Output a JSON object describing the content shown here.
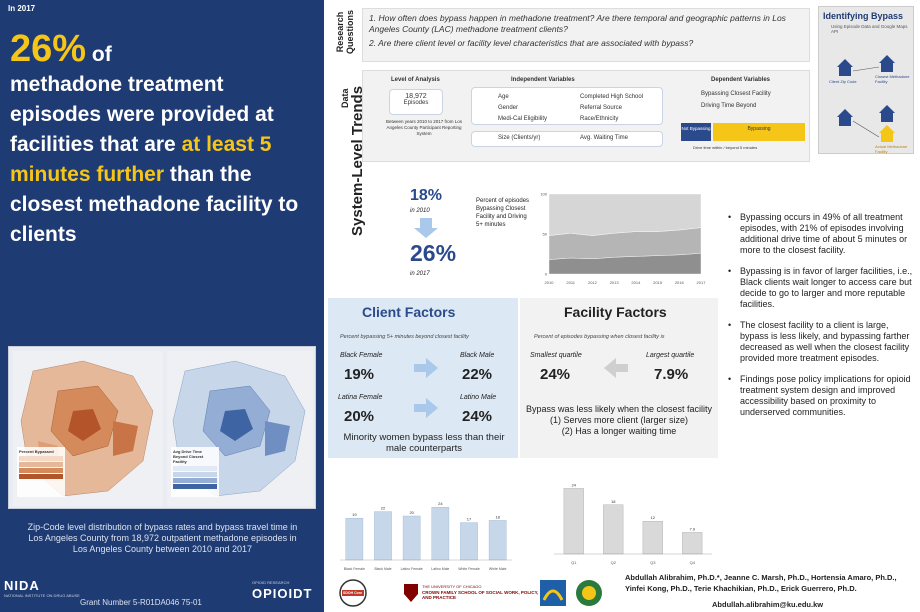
{
  "left": {
    "year_tag": "In 2017",
    "headline_pct": "26%",
    "headline_of": " of",
    "headline_part1": "methadone treatment episodes were provided at facilities that are ",
    "headline_highlight": "at least 5 minutes further",
    "headline_part2": " than the closest methadone facility to clients",
    "map1_legend_title": "Percent Bypassed",
    "map2_legend_title": "Avg Drive Time Beyond Closest Facility",
    "caption": "Zip-Code level distribution of bypass rates and bypass travel time in Los Angeles County from 18,972 outpatient methadone episodes in Los Angeles County between 2010 and 2017",
    "nida": "NIDA",
    "nida_sub": "NATIONAL INSTITUTE ON DRUG ABUSE",
    "grant": "Grant Number 5-R01DA046 75-01",
    "opioid": "OPIOIDT",
    "opioid_sub": "OPIOID RESEARCH"
  },
  "research": {
    "label": "Research Questions",
    "q1": "1. How often does bypass happen in methadone treatment? Are there temporal and geographic patterns in Los Angeles County (LAC) methadone treatment clients?",
    "q2": "2. Are there client level or facility level characteristics that are associated with bypass?"
  },
  "data_section": {
    "label": "Data",
    "level_header": "Level of Analysis",
    "episodes_count": "18,972",
    "episodes_label": "Episodes",
    "episodes_desc": "Between years 2010 to 2017 from Los Angeles County Participant Reporting System",
    "indep_header": "Independent Variables",
    "indep_col1": [
      "Age",
      "Gender",
      "Medi-Cal Eligibility"
    ],
    "indep_col2": [
      "Completed High School",
      "Referral Source",
      "Race/Ethnicity"
    ],
    "size_label": "Size (Clients/yr)",
    "wait_label": "Avg. Waiting Time",
    "dep_header": "Dependent Variables",
    "dep_1": "Bypassing Closest Facility",
    "dep_2": "Driving Time Beyond",
    "not_bypassing": "Not Bypassing",
    "bypassing": "Bypassing",
    "dep_sub": "Drive time within / beyond 5 minutes"
  },
  "identify": {
    "title": "Identifying Bypass",
    "sub": "Using Episode Data and Google Maps API",
    "client_zip": "Client Zip Code",
    "closest": "Closest Methadone Facility",
    "chosen": "Actual Methadone Facility"
  },
  "trends": {
    "title": "System-Level Trends",
    "pct_2010": "18%",
    "label_2010": "in 2010",
    "pct_2017": "26%",
    "label_2017": "in 2017",
    "desc": "Percent of episodes Bypassing Closest Facility and Driving 5+ minutes"
  },
  "chart_data": [
    {
      "type": "area",
      "x": [
        "2010",
        "2011",
        "2012",
        "2013",
        "2014",
        "2015",
        "2016",
        "2017"
      ],
      "series": [
        {
          "values": [
            18,
            20,
            19,
            21,
            22,
            23,
            24,
            26
          ]
        },
        {
          "values": [
            30,
            31,
            29,
            30,
            31,
            30,
            31,
            32
          ]
        },
        {
          "values": [
            52,
            49,
            52,
            49,
            47,
            47,
            45,
            42
          ]
        }
      ],
      "ylim": [
        0,
        100
      ]
    },
    {
      "type": "bar",
      "categories": [
        "Black Female",
        "Black Male",
        "Latino Female",
        "Latino Male",
        "White Female",
        "White Male"
      ],
      "series": [
        {
          "values": [
            19,
            22,
            20,
            24,
            17,
            18
          ]
        }
      ],
      "ylim": [
        0,
        40
      ]
    },
    {
      "type": "bar",
      "categories": [
        "Q1",
        "Q2",
        "Q3",
        "Q4"
      ],
      "values": [
        24,
        18,
        12,
        7.9
      ],
      "ylim": [
        0,
        30
      ]
    }
  ],
  "client": {
    "title": "Client Factors",
    "sub": "Percent bypassing 5+ minutes beyond closest facility",
    "bf_label": "Black Female",
    "bf_val": "19%",
    "bm_label": "Black Male",
    "bm_val": "22%",
    "lf_label": "Latina Female",
    "lf_val": "20%",
    "lm_label": "Latino Male",
    "lm_val": "24%",
    "note": "Minority women bypass less than their male counterparts"
  },
  "facility": {
    "title": "Facility Factors",
    "sub": "Percent of episodes bypassing when closest facility is",
    "small_label": "Smallest quartile",
    "small_val": "24%",
    "large_label": "Largest quartile",
    "large_val": "7.9%",
    "note": "Bypass was less likely when the closest facility\n(1) Serves more client (larger size)\n(2) Has a longer waiting time"
  },
  "bullets": [
    "Bypassing occurs in 49% of all treatment episodes, with 21% of episodes involving additional drive time of about 5 minutes or more to the closest facility.",
    "Bypassing is in favor of larger facilities, i.e., Black clients wait longer to access care but decide to go to larger and more reputable facilities.",
    "The closest facility to a client is large, bypass is less likely, and bypassing farther decreased as well when the closest facility provided more treatment episodes.",
    "Findings pose policy implications for opioid treatment system design and improved accessibility based on proximity to underserved communities."
  ],
  "footer": {
    "logo1": "SDOH Core",
    "logo2": "CROWN FAMILY SCHOOL OF SOCIAL WORK, POLICY, AND PRACTICE",
    "logo2_top": "THE UNIVERSITY OF CHICAGO",
    "authors": "Abdullah Alibrahim, Ph.D.*, Jeanne C. Marsh, Ph.D., Hortensia Amaro, Ph.D., Yinfei Kong, Ph.D., Terie Khachikian, Ph.D., Erick Guerrero, Ph.D.",
    "email": "Abdullah.alibrahim@ku.edu.kw"
  },
  "colors": {
    "navy": "#1f3b73",
    "gold": "#f5c518",
    "accent_blue": "#2a4a8b"
  }
}
